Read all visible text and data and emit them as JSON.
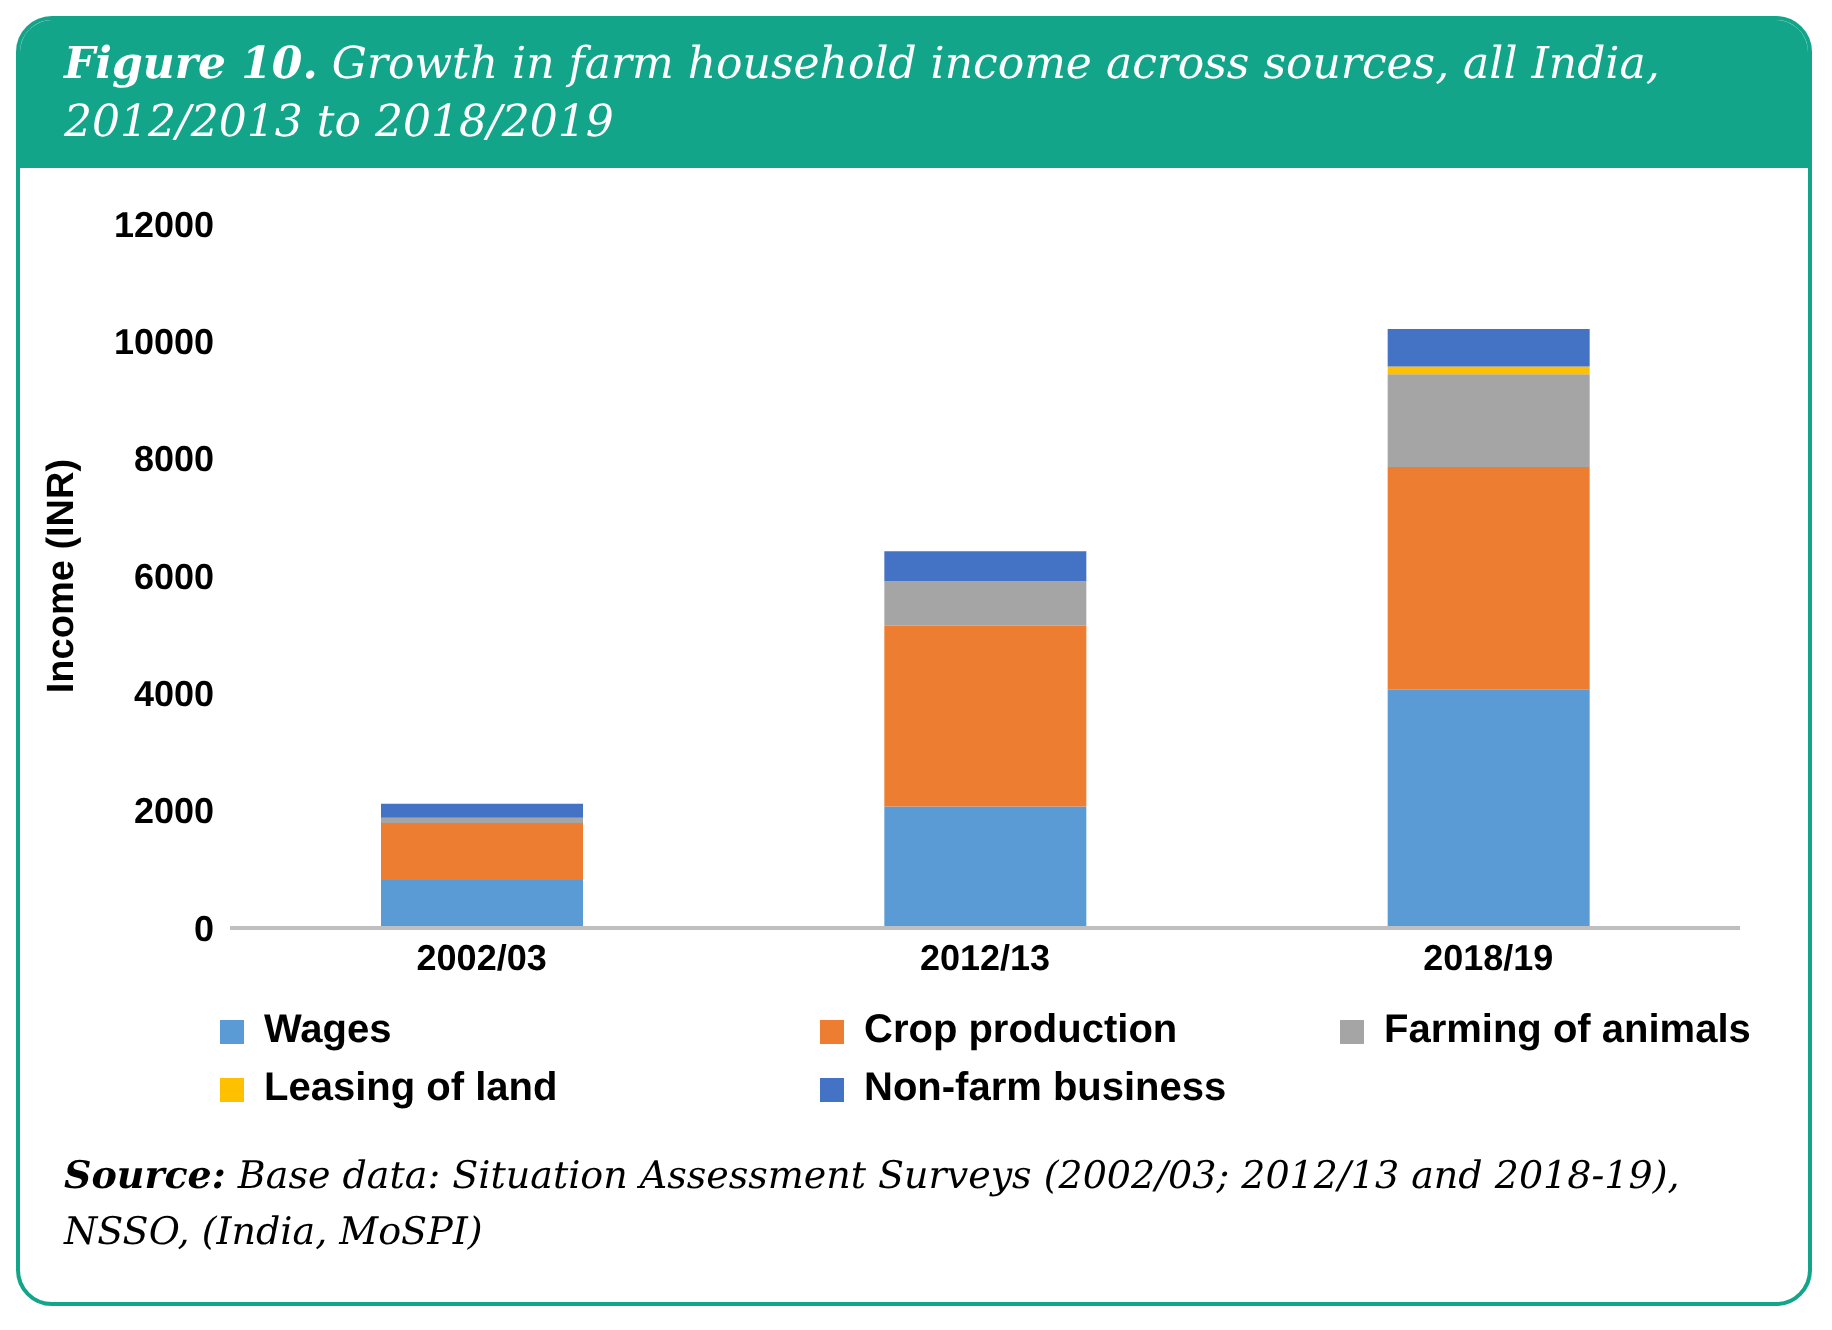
{
  "chart_data": {
    "type": "bar",
    "stacked": true,
    "title": "Figure 10. Growth in farm household income across sources, all India, 2012/2013 to 2018/2019",
    "ylabel": "Income (INR)",
    "categories": [
      "2002/03",
      "2012/13",
      "2018/19"
    ],
    "series": [
      {
        "name": "Wages",
        "color": "#5b9bd5",
        "values": [
          820,
          2070,
          4060
        ]
      },
      {
        "name": "Crop production",
        "color": "#ed7d31",
        "values": [
          970,
          3080,
          3800
        ]
      },
      {
        "name": "Farming of animals",
        "color": "#a5a5a5",
        "values": [
          90,
          760,
          1580
        ]
      },
      {
        "name": "Leasing of land",
        "color": "#ffc000",
        "values": [
          0,
          0,
          130
        ]
      },
      {
        "name": "Non-farm business",
        "color": "#4472c4",
        "values": [
          240,
          510,
          640
        ]
      }
    ],
    "ylim": [
      0,
      12000
    ],
    "yticks": [
      0,
      2000,
      4000,
      6000,
      8000,
      10000,
      12000
    ],
    "grid": false,
    "legend": "bottom",
    "annotations": [
      "Source: Base data: Situation Assessment Surveys (2002/03; 2012/13 and 2018-19), NSSO, (India, MoSPI)"
    ]
  }
}
